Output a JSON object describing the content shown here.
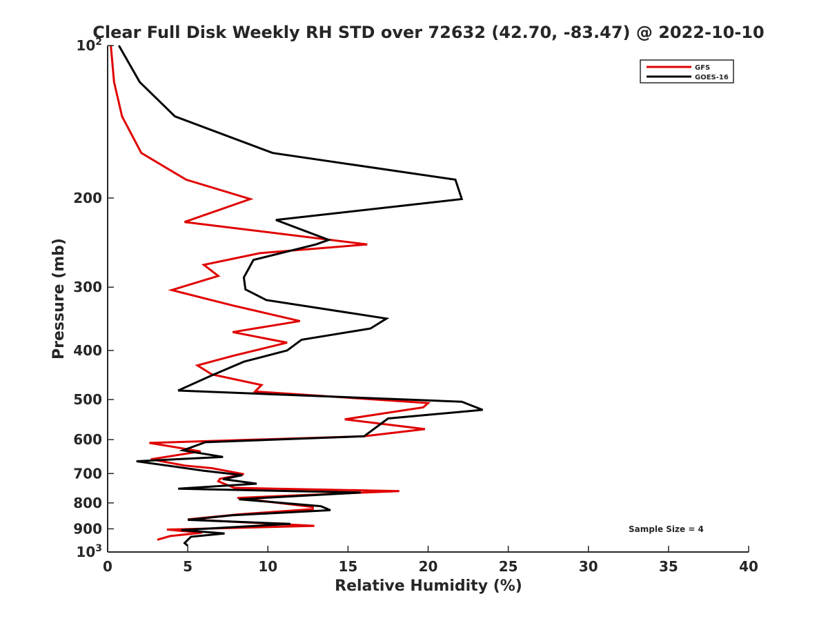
{
  "chart_data": {
    "type": "line",
    "title": "Clear Full Disk Weekly RH STD over 72632 (42.70, -83.47) @ 2022-10-10",
    "xlabel": "Relative Humidity (%)",
    "ylabel": "Pressure (mb)",
    "xlim": [
      0,
      40
    ],
    "ylim": [
      100,
      1000
    ],
    "y_scale": "log",
    "y_reversed": true,
    "grid": false,
    "legend_position": "top-right",
    "x_ticks": [
      0,
      5,
      10,
      15,
      20,
      25,
      30,
      35,
      40
    ],
    "y_ticks": [
      {
        "value": 100,
        "base": "10",
        "exp": "2"
      },
      {
        "value": 200,
        "label": "200"
      },
      {
        "value": 300,
        "label": "300"
      },
      {
        "value": 400,
        "label": "400"
      },
      {
        "value": 500,
        "label": "500"
      },
      {
        "value": 600,
        "label": "600"
      },
      {
        "value": 700,
        "label": "700"
      },
      {
        "value": 800,
        "label": "800"
      },
      {
        "value": 900,
        "label": "900"
      },
      {
        "value": 1000,
        "base": "10",
        "exp": "3"
      }
    ],
    "annotation": "Sample Size = 4",
    "series": [
      {
        "name": "GFS",
        "color": "#e00000",
        "points": [
          [
            0.2,
            100
          ],
          [
            0.4,
            118
          ],
          [
            0.9,
            138
          ],
          [
            2.1,
            163
          ],
          [
            4.9,
            184
          ],
          [
            8.9,
            201
          ],
          [
            4.8,
            223
          ],
          [
            16.2,
            247
          ],
          [
            9.5,
            257
          ],
          [
            6.0,
            271
          ],
          [
            6.9,
            285
          ],
          [
            4.0,
            304
          ],
          [
            7.8,
            326
          ],
          [
            12.0,
            350
          ],
          [
            7.8,
            368
          ],
          [
            11.2,
            386
          ],
          [
            7.8,
            410
          ],
          [
            5.6,
            428
          ],
          [
            6.5,
            446
          ],
          [
            9.6,
            468
          ],
          [
            9.2,
            482
          ],
          [
            20.0,
            508
          ],
          [
            19.7,
            518
          ],
          [
            14.8,
            547
          ],
          [
            19.8,
            572
          ],
          [
            16.0,
            591
          ],
          [
            2.6,
            609
          ],
          [
            5.8,
            633
          ],
          [
            2.7,
            656
          ],
          [
            4.8,
            675
          ],
          [
            6.5,
            683
          ],
          [
            8.5,
            702
          ],
          [
            7.0,
            717
          ],
          [
            6.9,
            725
          ],
          [
            7.9,
            747
          ],
          [
            18.2,
            758
          ],
          [
            8.1,
            782
          ],
          [
            12.8,
            815
          ],
          [
            12.8,
            823
          ],
          [
            8.1,
            843
          ],
          [
            5.0,
            862
          ],
          [
            12.9,
            888
          ],
          [
            3.7,
            903
          ],
          [
            5.9,
            916
          ],
          [
            3.9,
            930
          ],
          [
            3.1,
            946
          ]
        ]
      },
      {
        "name": "GOES-16",
        "color": "#000000",
        "points": [
          [
            0.7,
            100
          ],
          [
            2.0,
            118
          ],
          [
            4.2,
            138
          ],
          [
            10.3,
            163
          ],
          [
            21.7,
            184
          ],
          [
            22.1,
            201
          ],
          [
            10.5,
            221
          ],
          [
            13.8,
            242
          ],
          [
            13.0,
            247
          ],
          [
            9.1,
            265
          ],
          [
            8.5,
            287
          ],
          [
            8.6,
            303
          ],
          [
            9.9,
            318
          ],
          [
            17.4,
            346
          ],
          [
            16.4,
            362
          ],
          [
            12.1,
            381
          ],
          [
            11.2,
            400
          ],
          [
            8.5,
            421
          ],
          [
            6.5,
            448
          ],
          [
            4.4,
            480
          ],
          [
            22.1,
            505
          ],
          [
            23.4,
            524
          ],
          [
            17.5,
            545
          ],
          [
            16.0,
            591
          ],
          [
            6.1,
            607
          ],
          [
            4.7,
            630
          ],
          [
            7.2,
            649
          ],
          [
            1.8,
            662
          ],
          [
            6.0,
            691
          ],
          [
            8.4,
            705
          ],
          [
            7.2,
            718
          ],
          [
            9.3,
            733
          ],
          [
            4.4,
            750
          ],
          [
            15.8,
            763
          ],
          [
            8.2,
            787
          ],
          [
            13.3,
            812
          ],
          [
            13.9,
            827
          ],
          [
            7.8,
            846
          ],
          [
            5.0,
            864
          ],
          [
            11.4,
            880
          ],
          [
            4.6,
            905
          ],
          [
            7.3,
            919
          ],
          [
            5.2,
            933
          ],
          [
            4.8,
            960
          ],
          [
            5.0,
            972
          ]
        ]
      }
    ]
  }
}
